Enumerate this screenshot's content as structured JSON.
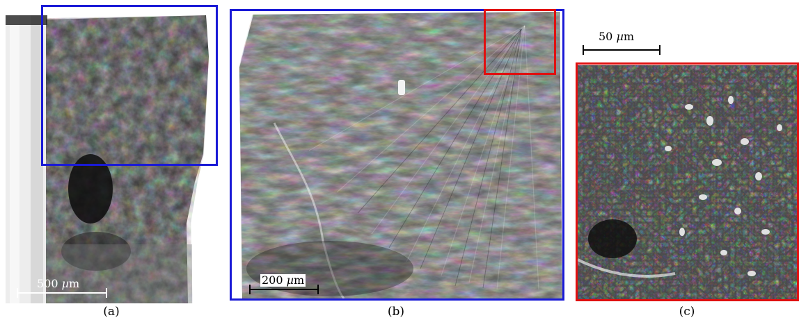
{
  "panels": [
    {
      "id": "a",
      "caption": "(a)",
      "scale_bar": {
        "value": "500",
        "unit_symbol": "µ",
        "unit_rest": "m"
      }
    },
    {
      "id": "b",
      "caption": "(b)",
      "scale_bar": {
        "value": "200",
        "unit_symbol": "µ",
        "unit_rest": "m"
      }
    },
    {
      "id": "c",
      "caption": "(c)",
      "scale_bar": {
        "value": "50",
        "unit_symbol": "µ",
        "unit_rest": "m"
      }
    }
  ],
  "colors": {
    "highlight_blue": "#1a1ad6",
    "highlight_red": "#e01010",
    "scalebar_on_image": "#ffffff",
    "scalebar_on_paper": "#000000"
  },
  "image_content": "SEM micrographs of a fracture surface"
}
